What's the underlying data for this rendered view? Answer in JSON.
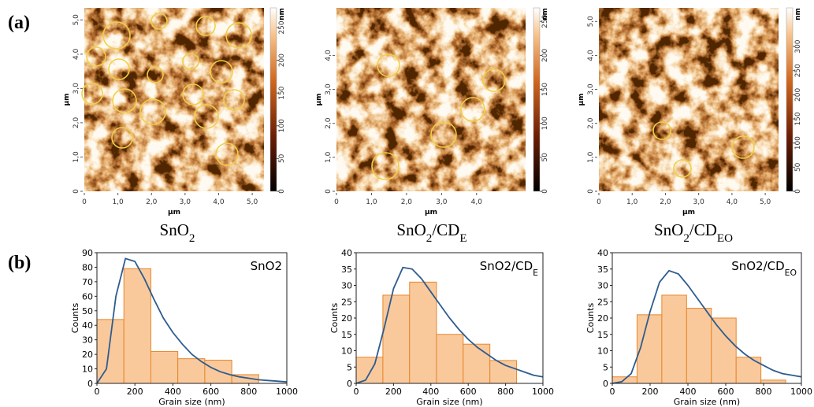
{
  "panel_labels": [
    "(a)",
    "(b)"
  ],
  "afm_images": [
    {
      "caption": [
        {
          "text": "SnO"
        },
        {
          "text": "2",
          "sub": true
        }
      ],
      "x_label": "µm",
      "y_label": "µm",
      "colorbar_unit": "nm",
      "xlim": [
        0,
        5.35
      ],
      "ylim": [
        0,
        5.35
      ],
      "xticks": [
        0,
        {
          "value": 1,
          "label": "1,0"
        },
        {
          "value": 2,
          "label": "2,0"
        },
        {
          "value": 3,
          "label": "3,0"
        },
        {
          "value": 4,
          "label": "4,0"
        },
        {
          "value": 5,
          "label": "5,0"
        }
      ],
      "yticks": [
        0,
        {
          "value": 1,
          "label": "1,0"
        },
        {
          "value": 2,
          "label": "2,0"
        },
        {
          "value": 3,
          "label": "3,0"
        },
        {
          "value": 4,
          "label": "4,0"
        },
        {
          "value": 5,
          "label": "5,0"
        }
      ],
      "colorbar_lim": [
        0,
        280
      ],
      "colorbar_ticks": [
        0,
        50,
        100,
        150,
        200,
        250
      ]
    },
    {
      "caption": [
        {
          "text": "SnO"
        },
        {
          "text": "2",
          "sub": true
        },
        {
          "text": "/CD"
        },
        {
          "text": "E",
          "sub": true
        }
      ],
      "x_label": "µm",
      "y_label": "µm",
      "colorbar_unit": "nm",
      "xlim": [
        0,
        5.4
      ],
      "ylim": [
        0,
        5.4
      ],
      "xticks": [
        0,
        {
          "value": 1,
          "label": "1,0"
        },
        {
          "value": 2,
          "label": "2,0"
        },
        {
          "value": 3,
          "label": "3,0"
        },
        {
          "value": 4,
          "label": "4,0"
        }
      ],
      "yticks": [
        0,
        {
          "value": 1,
          "label": "1,0"
        },
        {
          "value": 2,
          "label": "2,0"
        },
        {
          "value": 3,
          "label": "3,0"
        },
        {
          "value": 4,
          "label": "4,0"
        }
      ],
      "colorbar_lim": [
        0,
        270
      ],
      "colorbar_ticks": [
        0,
        50,
        100,
        150,
        200,
        250
      ]
    },
    {
      "caption": [
        {
          "text": "SnO"
        },
        {
          "text": "2",
          "sub": true
        },
        {
          "text": "/CD"
        },
        {
          "text": "EO",
          "sub": true
        }
      ],
      "x_label": "µm",
      "y_label": "µm",
      "colorbar_unit": "nm",
      "xlim": [
        0,
        5.4
      ],
      "ylim": [
        0,
        5.4
      ],
      "xticks": [
        0,
        {
          "value": 1,
          "label": "1,0"
        },
        {
          "value": 2,
          "label": "2,0"
        },
        {
          "value": 3,
          "label": "3,0"
        },
        {
          "value": 4,
          "label": "4,0"
        },
        {
          "value": 5,
          "label": "5,0"
        }
      ],
      "yticks": [
        0,
        {
          "value": 1,
          "label": "1,0"
        },
        {
          "value": 2,
          "label": "2,0"
        },
        {
          "value": 3,
          "label": "3,0"
        },
        {
          "value": 4,
          "label": "4,0"
        },
        {
          "value": 5,
          "label": "5,0"
        }
      ],
      "colorbar_lim": [
        0,
        380
      ],
      "colorbar_ticks": [
        0,
        50,
        100,
        150,
        200,
        250,
        300
      ]
    }
  ],
  "chart_data": [
    {
      "type": "histogram",
      "legend": [
        {
          "text": "SnO2"
        }
      ],
      "xlabel": "Grain size (nm)",
      "ylabel": "Counts",
      "bins": [
        0,
        142,
        284,
        426,
        568,
        710,
        852
      ],
      "counts": [
        44,
        79,
        22,
        17,
        16,
        6
      ],
      "bar_color": "#f9c99c",
      "edge_color": "#e8862a",
      "fit": {
        "color": "#2e5c8f",
        "x": [
          0,
          50,
          100,
          150,
          200,
          250,
          300,
          350,
          400,
          450,
          500,
          550,
          600,
          650,
          700,
          750,
          800,
          850,
          900,
          950,
          1000
        ],
        "values": [
          0,
          10,
          60,
          86,
          84,
          72,
          58,
          45,
          35,
          27,
          20,
          15,
          11,
          8,
          6,
          4.5,
          3.5,
          2.5,
          2,
          1.5,
          1
        ]
      },
      "xlim": [
        0,
        1000
      ],
      "ylim": [
        0,
        90
      ],
      "xticks": [
        0,
        200,
        400,
        600,
        800,
        1000
      ],
      "yticks": [
        0,
        10,
        20,
        30,
        40,
        50,
        60,
        70,
        80,
        90
      ]
    },
    {
      "type": "histogram",
      "legend": [
        {
          "text": "SnO2/CD"
        },
        {
          "text": "E",
          "sub": true
        }
      ],
      "xlabel": "Grain size (nm)",
      "ylabel": "Counts",
      "bins": [
        0,
        143,
        286,
        430,
        573,
        716,
        859
      ],
      "counts": [
        8,
        27,
        31,
        15,
        12,
        7
      ],
      "bar_color": "#f9c99c",
      "edge_color": "#e8862a",
      "fit": {
        "color": "#2e5c8f",
        "x": [
          0,
          50,
          100,
          150,
          200,
          250,
          300,
          350,
          400,
          450,
          500,
          550,
          600,
          650,
          700,
          750,
          800,
          850,
          900,
          950,
          1000
        ],
        "values": [
          0,
          1,
          6,
          17,
          29,
          35.5,
          35,
          32,
          28,
          24,
          20,
          16.5,
          13.5,
          11,
          9,
          7,
          5.5,
          4.5,
          3.5,
          2.5,
          2
        ]
      },
      "xlim": [
        0,
        1000
      ],
      "ylim": [
        0,
        40
      ],
      "xticks": [
        0,
        200,
        400,
        600,
        800,
        1000
      ],
      "yticks": [
        0,
        5,
        10,
        15,
        20,
        25,
        30,
        35,
        40
      ]
    },
    {
      "type": "histogram",
      "legend": [
        {
          "text": "SnO2/CD"
        },
        {
          "text": "EO",
          "sub": true
        }
      ],
      "xlabel": "Grain size (nm)",
      "ylabel": "Counts",
      "bins": [
        0,
        131,
        262,
        393,
        524,
        655,
        786,
        917
      ],
      "counts": [
        2,
        21,
        27,
        23,
        20,
        8,
        1
      ],
      "bar_color": "#f9c99c",
      "edge_color": "#e8862a",
      "fit": {
        "color": "#2e5c8f",
        "x": [
          0,
          50,
          100,
          150,
          200,
          250,
          300,
          350,
          400,
          450,
          500,
          550,
          600,
          650,
          700,
          750,
          800,
          850,
          900,
          950,
          1000
        ],
        "values": [
          0,
          0.5,
          3,
          11,
          22,
          31,
          34.5,
          33.5,
          30,
          26,
          22,
          18,
          14.5,
          11.5,
          9,
          7,
          5.5,
          4,
          3,
          2.5,
          2
        ]
      },
      "xlim": [
        0,
        1000
      ],
      "ylim": [
        0,
        40
      ],
      "xticks": [
        0,
        200,
        400,
        600,
        800,
        1000
      ],
      "yticks": [
        0,
        5,
        10,
        15,
        20,
        25,
        30,
        35,
        40
      ]
    }
  ]
}
